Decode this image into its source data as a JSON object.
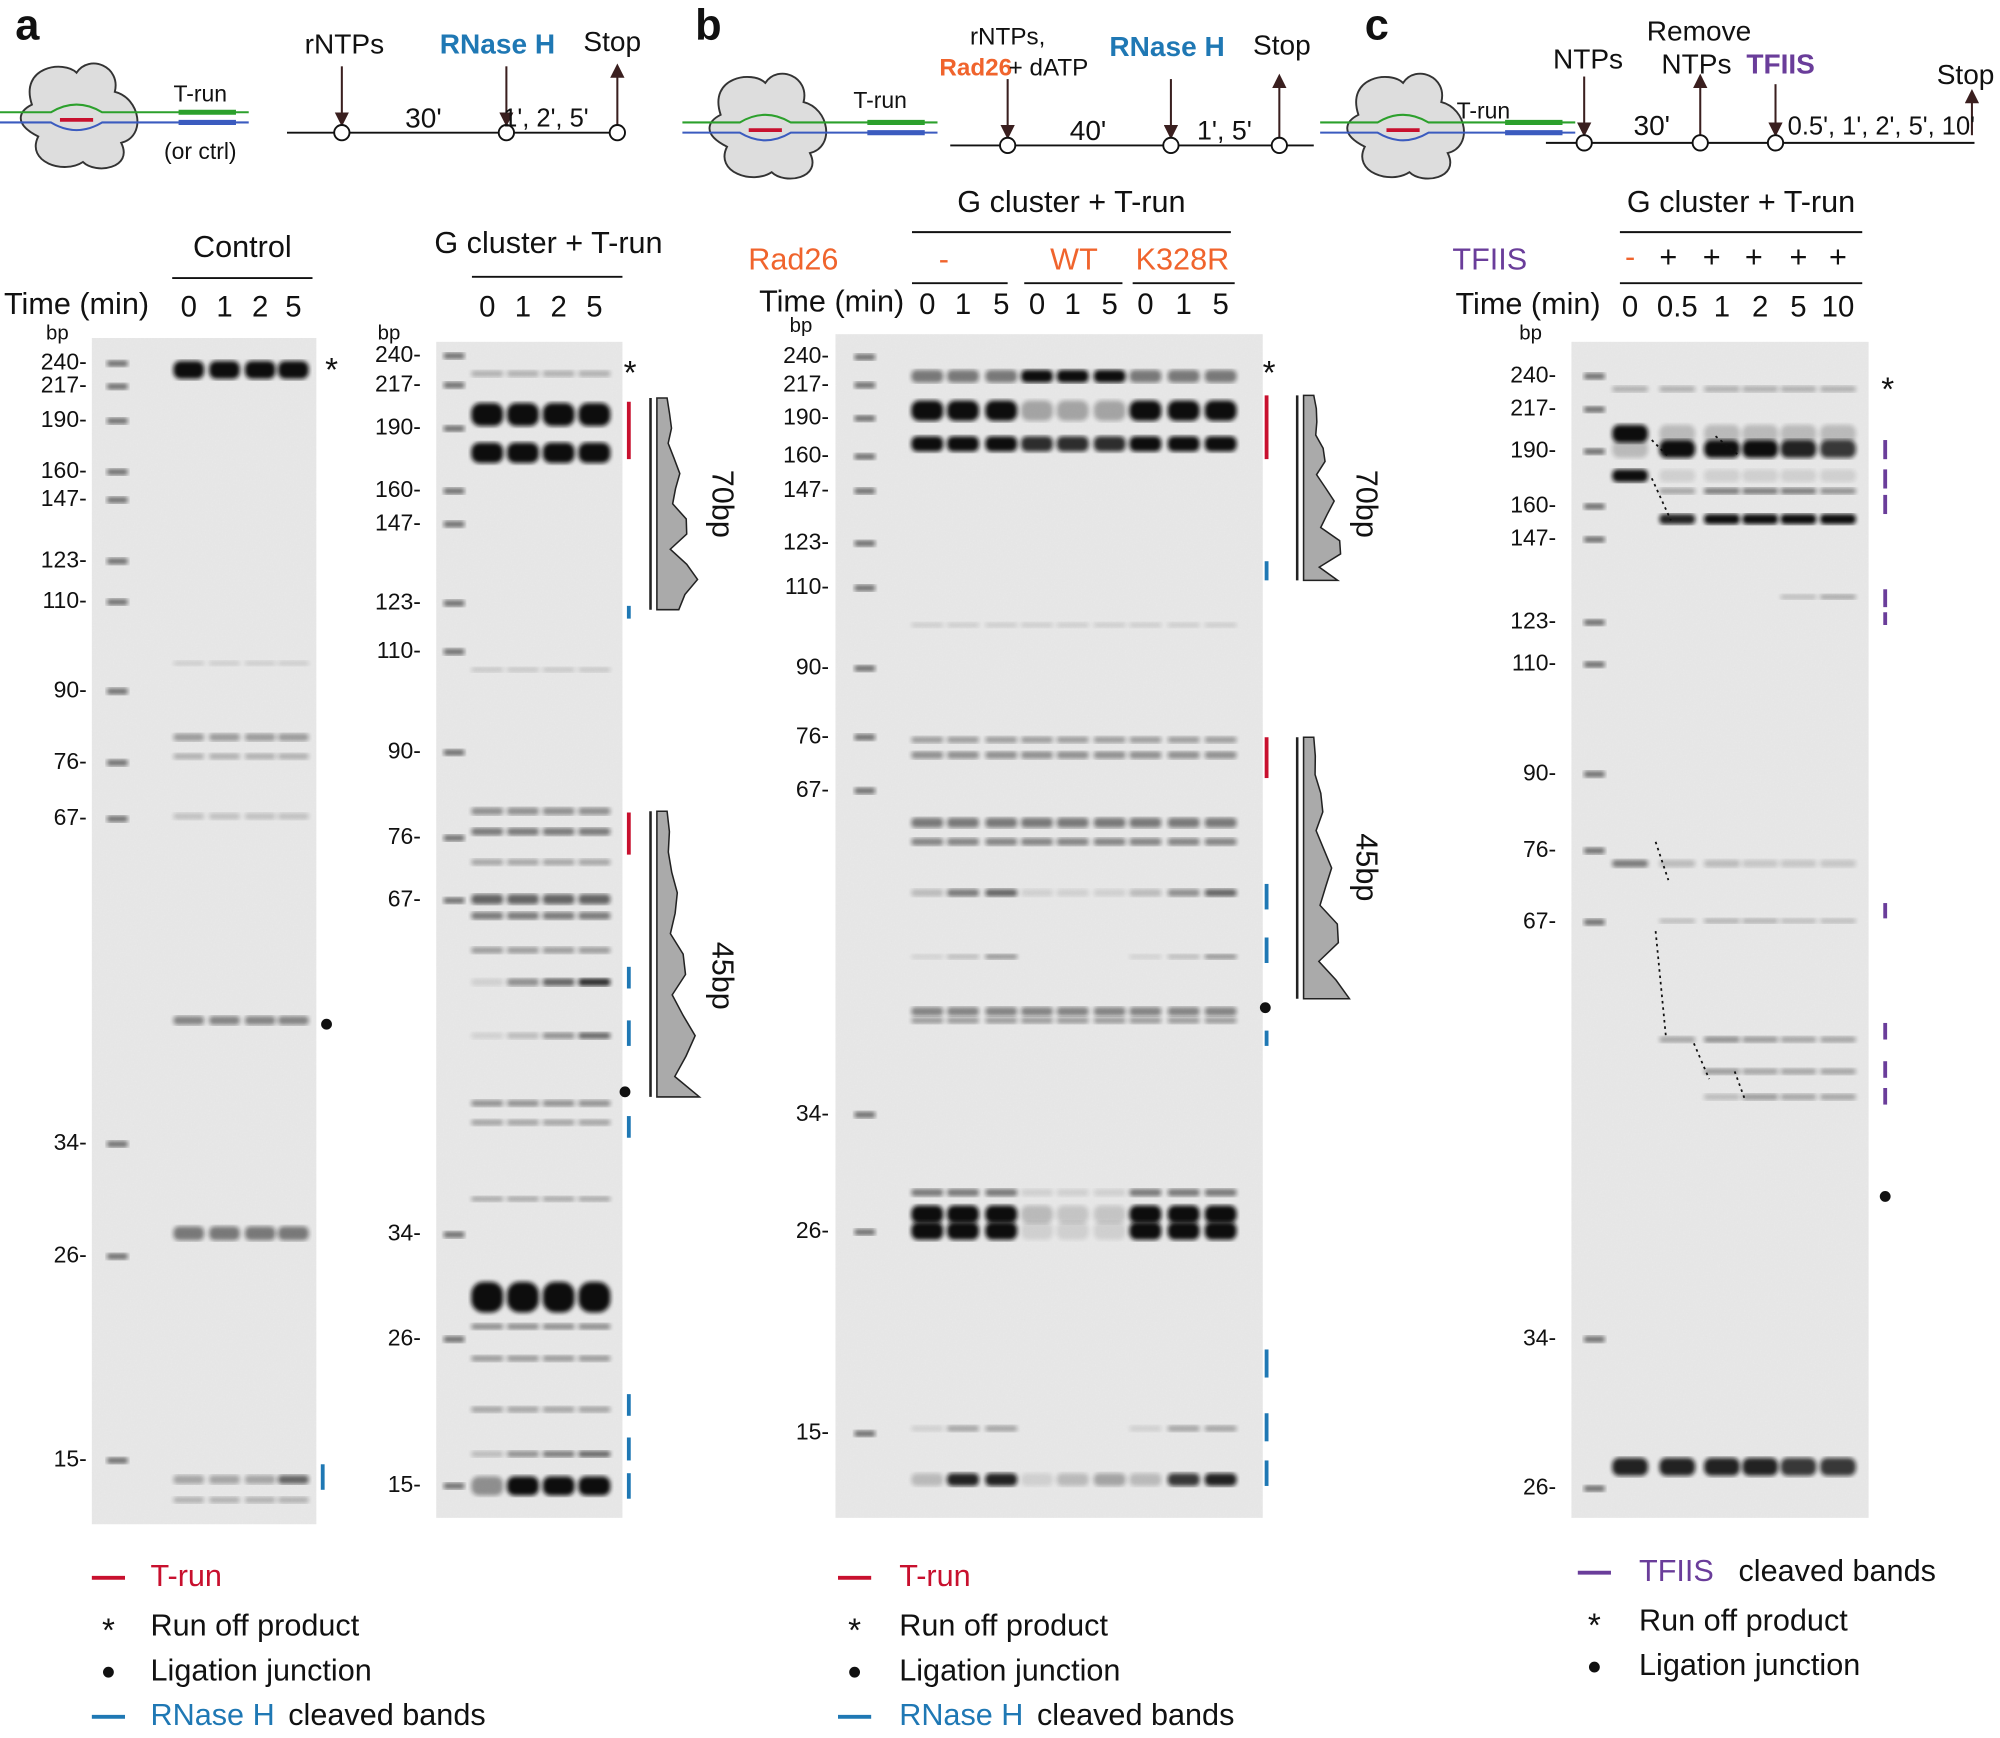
{
  "panels": [
    {
      "label": "a",
      "schematic": {
        "construct": "T-run",
        "construct_note": "(or ctrl)",
        "additions": [
          "rNTPs",
          "RNase H"
        ],
        "stop": "Stop",
        "intervals": [
          "30'",
          "1', 2', 5'"
        ]
      },
      "gels": [
        {
          "title": "Control",
          "time_label": "Time (min)",
          "times": [
            "0",
            "1",
            "2",
            "5"
          ],
          "unit": "bp",
          "markers": [
            "240-",
            "217-",
            "190-",
            "160-",
            "147-",
            "123-",
            "110-",
            "90-",
            "76-",
            "67-",
            "34-",
            "26-",
            "15-"
          ],
          "run_off": "*"
        },
        {
          "title": "G cluster + T-run",
          "times": [
            "0",
            "1",
            "2",
            "5"
          ],
          "unit": "bp",
          "markers": [
            "240-",
            "217-",
            "190-",
            "160-",
            "147-",
            "123-",
            "110-",
            "90-",
            "76-",
            "67-",
            "34-",
            "26-",
            "15-"
          ],
          "run_off": "*",
          "features": [
            "70bp",
            "45bp"
          ]
        }
      ],
      "legend": [
        {
          "text": "T-run"
        },
        {
          "symbol": "*",
          "text": "Run off product"
        },
        {
          "text": "Ligation junction"
        },
        {
          "highlight": "RNase H",
          "text": "cleaved bands"
        }
      ]
    },
    {
      "label": "b",
      "schematic": {
        "construct": "T-run",
        "additions": [
          "rNTPs,",
          "Rad26",
          "+ dATP",
          "RNase H"
        ],
        "stop": "Stop",
        "intervals": [
          "40'",
          "1', 5'"
        ]
      },
      "gels": [
        {
          "title": "G cluster + T-run",
          "condition_label": "Rad26",
          "conditions": [
            "-",
            "WT",
            "K328R"
          ],
          "time_label": "Time (min)",
          "times": [
            "0",
            "1",
            "5",
            "0",
            "1",
            "5",
            "0",
            "1",
            "5"
          ],
          "unit": "bp",
          "markers": [
            "240-",
            "217-",
            "190-",
            "160-",
            "147-",
            "123-",
            "110-",
            "90-",
            "76-",
            "67-",
            "34-",
            "26-",
            "15-"
          ],
          "run_off": "*",
          "features": [
            "70bp",
            "45bp"
          ]
        }
      ],
      "legend": [
        {
          "text": "T-run"
        },
        {
          "symbol": "*",
          "text": "Run off product"
        },
        {
          "text": "Ligation junction"
        },
        {
          "highlight": "RNase H",
          "text": "cleaved bands"
        }
      ]
    },
    {
      "label": "c",
      "schematic": {
        "construct": "T-run",
        "additions": [
          "NTPs",
          "Remove",
          "NTPs",
          "TFIIS"
        ],
        "stop": "Stop",
        "intervals": [
          "30'",
          "0.5', 1', 2', 5', 10'"
        ]
      },
      "gels": [
        {
          "title": "G cluster + T-run",
          "condition_label": "TFIIS",
          "conditions": [
            "-",
            "+",
            "+",
            "+",
            "+",
            "+"
          ],
          "time_label": "Time (min)",
          "times": [
            "0",
            "0.5",
            "1",
            "2",
            "5",
            "10"
          ],
          "unit": "bp",
          "markers": [
            "240-",
            "217-",
            "190-",
            "160-",
            "147-",
            "123-",
            "110-",
            "90-",
            "76-",
            "67-",
            "34-",
            "26-"
          ],
          "run_off": "*"
        }
      ],
      "legend": [
        {
          "highlight": "TFIIS",
          "text": "cleaved bands"
        },
        {
          "symbol": "*",
          "text": "Run off product"
        },
        {
          "text": "Ligation junction"
        }
      ]
    }
  ]
}
